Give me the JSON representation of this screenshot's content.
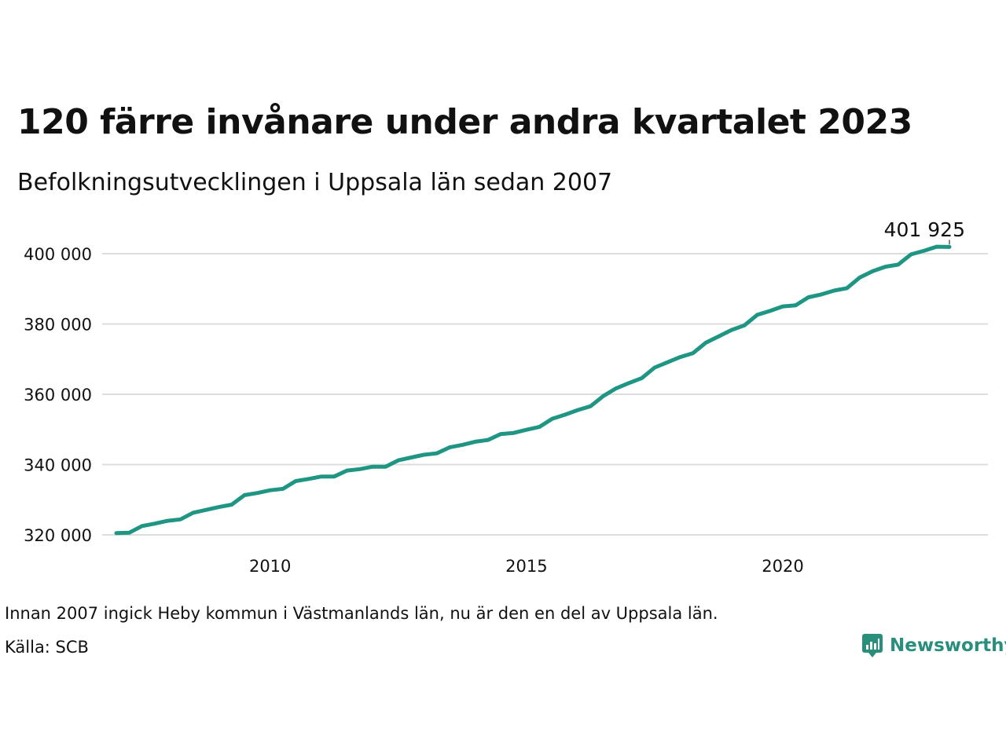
{
  "title": "120 färre invånare under andra kvartalet 2023",
  "subtitle": "Befolkningsutvecklingen i Uppsala län sedan 2007",
  "note": "Innan 2007 ingick Heby kommun i Västmanlands län, nu är den en del av Uppsala län.",
  "source": "Källa: SCB",
  "brand": {
    "name": "Newsworthy",
    "icon": "newsworthy-logo-icon",
    "color": "#2a8e7c"
  },
  "colors": {
    "line": "#1f9583",
    "grid": "#dddddd"
  },
  "chart_data": {
    "type": "line",
    "title": "120 färre invånare under andra kvartalet 2023",
    "subtitle": "Befolkningsutvecklingen i Uppsala län sedan 2007",
    "xlabel": "",
    "ylabel": "",
    "grid": "horizontal",
    "xlim": [
      2007.0,
      2024.0
    ],
    "ylim": [
      316000,
      405000
    ],
    "x_ticks": [
      2010,
      2015,
      2020
    ],
    "x_tick_labels": [
      "2010",
      "2015",
      "2020"
    ],
    "y_ticks": [
      320000,
      340000,
      360000,
      380000,
      400000
    ],
    "y_tick_labels": [
      "320 000",
      "340 000",
      "360 000",
      "380 000",
      "400 000"
    ],
    "end_label": "401 925",
    "series": [
      {
        "x": [
          2007.0,
          2007.25,
          2007.5,
          2007.75,
          2008.0,
          2008.25,
          2008.5,
          2008.75,
          2009.0,
          2009.25,
          2009.5,
          2009.75,
          2010.0,
          2010.25,
          2010.5,
          2010.75,
          2011.0,
          2011.25,
          2011.5,
          2011.75,
          2012.0,
          2012.25,
          2012.5,
          2012.75,
          2013.0,
          2013.25,
          2013.5,
          2013.75,
          2014.0,
          2014.25,
          2014.5,
          2014.75,
          2015.0,
          2015.25,
          2015.5,
          2015.75,
          2016.0,
          2016.25,
          2016.5,
          2016.75,
          2017.0,
          2017.25,
          2017.5,
          2017.75,
          2018.0,
          2018.25,
          2018.5,
          2018.75,
          2019.0,
          2019.25,
          2019.5,
          2019.75,
          2020.0,
          2020.25,
          2020.5,
          2020.75,
          2021.0,
          2021.25,
          2021.5,
          2021.75,
          2022.0,
          2022.25,
          2022.5,
          2022.75,
          2023.0,
          2023.25
        ],
        "values": [
          320500,
          320600,
          322500,
          323200,
          324000,
          324400,
          326300,
          327100,
          327900,
          328600,
          331300,
          331900,
          332700,
          333100,
          335300,
          335900,
          336600,
          336600,
          338300,
          338700,
          339400,
          339400,
          341200,
          342000,
          342800,
          343200,
          344900,
          345600,
          346500,
          347000,
          348700,
          349000,
          349900,
          350700,
          353000,
          354200,
          355500,
          356600,
          359500,
          361700,
          363200,
          364600,
          367600,
          369100,
          370600,
          371700,
          374700,
          376500,
          378300,
          379600,
          382600,
          383700,
          385000,
          385300,
          387600,
          388400,
          389500,
          390200,
          393200,
          395000,
          396300,
          396900,
          399800,
          400800,
          402000,
          401925
        ]
      }
    ]
  }
}
